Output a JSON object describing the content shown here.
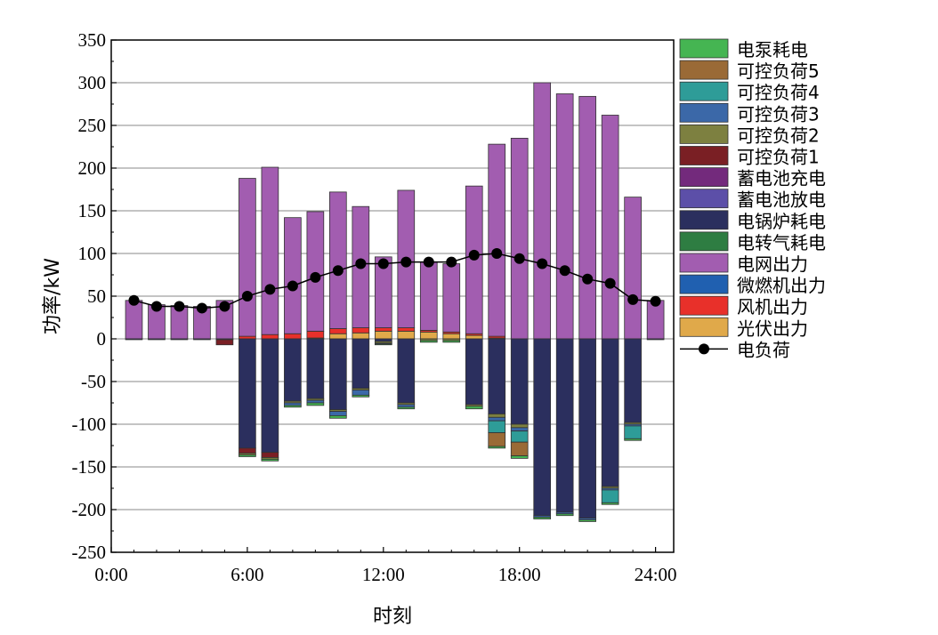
{
  "chart_data": {
    "type": "bar",
    "stacked": true,
    "title": "",
    "xlabel": "时刻",
    "ylabel": "功率/kW",
    "ylim": [
      -250,
      350
    ],
    "yticks": [
      -250,
      -200,
      -150,
      -100,
      -50,
      0,
      50,
      100,
      150,
      200,
      250,
      300,
      350
    ],
    "xlim": [
      0,
      24.8
    ],
    "xticks": [
      {
        "value": 0,
        "label": "0:00"
      },
      {
        "value": 6,
        "label": "6:00"
      },
      {
        "value": 12,
        "label": "12:00"
      },
      {
        "value": 18,
        "label": "18:00"
      },
      {
        "value": 24,
        "label": "24:00"
      }
    ],
    "grid": "horizontal",
    "legend_position": "right",
    "x": [
      1,
      2,
      3,
      4,
      5,
      6,
      7,
      8,
      9,
      10,
      11,
      12,
      13,
      14,
      15,
      16,
      17,
      18,
      19,
      20,
      21,
      22,
      23,
      24
    ],
    "series": [
      {
        "name": "光伏出力",
        "color": "#E0A94A",
        "sign": "positive",
        "values": [
          0,
          0,
          0,
          0,
          0,
          0,
          0,
          0,
          1,
          6,
          7,
          9,
          9,
          8,
          6,
          4,
          1,
          0,
          0,
          0,
          0,
          0,
          0,
          0
        ]
      },
      {
        "name": "风机出力",
        "color": "#E8302A",
        "sign": "positive",
        "values": [
          0,
          0,
          0,
          0,
          0,
          3,
          5,
          6,
          8,
          6,
          6,
          4,
          4,
          2,
          2,
          2,
          2,
          0,
          0,
          0,
          0,
          0,
          0,
          0
        ]
      },
      {
        "name": "微燃机出力",
        "color": "#2060B0",
        "sign": "positive",
        "values": [
          0,
          0,
          0,
          0,
          0,
          0,
          0,
          0,
          0,
          0,
          0,
          0,
          0,
          0,
          0,
          0,
          0,
          0,
          0,
          0,
          0,
          0,
          0,
          0
        ]
      },
      {
        "name": "电网出力",
        "color": "#A25DB0",
        "sign": "positive",
        "values": [
          45,
          40,
          39,
          38,
          45,
          185,
          196,
          136,
          140,
          160,
          142,
          83,
          161,
          80,
          80,
          173,
          225,
          235,
          300,
          287,
          284,
          262,
          166,
          45
        ]
      },
      {
        "name": "电转气耗电",
        "color": "#2E7D42",
        "sign": "negative",
        "values": [
          0,
          0,
          0,
          0,
          0,
          0,
          0,
          0,
          0,
          0,
          0,
          0,
          0,
          0,
          0,
          0,
          0,
          0,
          0,
          0,
          0,
          0,
          0,
          0
        ]
      },
      {
        "name": "电锅炉耗电",
        "color": "#2B2F5E",
        "sign": "negative",
        "values": [
          -1,
          -1,
          -1,
          -1,
          -1,
          -128,
          -133,
          -73,
          -70,
          -83,
          -58,
          -3,
          -75,
          0,
          0,
          -77,
          -88,
          -100,
          -207,
          -203,
          -210,
          -173,
          -98,
          -1
        ]
      },
      {
        "name": "蓄电池放电",
        "color": "#5C4FA8",
        "sign": "positive",
        "values": [
          0,
          0,
          0,
          0,
          0,
          0,
          0,
          0,
          0,
          0,
          0,
          0,
          0,
          0,
          0,
          0,
          0,
          0,
          0,
          0,
          0,
          0,
          0,
          0
        ]
      },
      {
        "name": "蓄电池充电",
        "color": "#732A7C",
        "sign": "negative",
        "values": [
          0,
          0,
          0,
          0,
          0,
          0,
          0,
          0,
          0,
          0,
          0,
          0,
          0,
          0,
          0,
          0,
          0,
          0,
          0,
          0,
          0,
          0,
          0,
          0
        ]
      },
      {
        "name": "可控负荷1",
        "color": "#7A1F24",
        "sign": "negative",
        "values": [
          0,
          0,
          0,
          0,
          -6,
          -6,
          -6,
          0,
          0,
          0,
          0,
          0,
          0,
          0,
          0,
          0,
          0,
          0,
          0,
          0,
          0,
          0,
          0,
          0
        ]
      },
      {
        "name": "可控负荷2",
        "color": "#7D8040",
        "sign": "negative",
        "values": [
          0,
          0,
          0,
          0,
          0,
          -2,
          -2,
          -2,
          -2,
          -2,
          -2,
          -2,
          -2,
          -2,
          -2,
          -2,
          -4,
          -4,
          0,
          0,
          0,
          -2,
          -2,
          0
        ]
      },
      {
        "name": "可控负荷3",
        "color": "#3B68A8",
        "sign": "negative",
        "values": [
          0,
          0,
          0,
          0,
          0,
          0,
          0,
          -3,
          -3,
          -5,
          -6,
          -1,
          -3,
          0,
          0,
          0,
          -4,
          -4,
          -2,
          -2,
          -2,
          -2,
          -2,
          0
        ]
      },
      {
        "name": "可控负荷4",
        "color": "#2E9C98",
        "sign": "negative",
        "values": [
          0,
          0,
          0,
          0,
          0,
          0,
          0,
          0,
          0,
          0,
          0,
          0,
          0,
          0,
          0,
          0,
          -14,
          -13,
          0,
          0,
          0,
          -15,
          -15,
          0
        ]
      },
      {
        "name": "可控负荷5",
        "color": "#9A6A36",
        "sign": "negative",
        "values": [
          0,
          0,
          0,
          0,
          0,
          0,
          0,
          0,
          0,
          0,
          0,
          0,
          0,
          0,
          0,
          0,
          -16,
          -16,
          0,
          0,
          0,
          0,
          0,
          0
        ]
      },
      {
        "name": "电泵耗电",
        "color": "#45B552",
        "sign": "negative",
        "values": [
          0,
          0,
          0,
          0,
          0,
          -2,
          -2,
          -2,
          -3,
          -3,
          -2,
          -1,
          -2,
          -2,
          -2,
          -3,
          -2,
          -3,
          -2,
          -2,
          -2,
          -2,
          -2,
          0
        ]
      }
    ],
    "line_series": {
      "name": "电负荷",
      "color": "#000000",
      "values": [
        45,
        38,
        38,
        36,
        38,
        50,
        58,
        62,
        72,
        80,
        88,
        88,
        90,
        90,
        90,
        98,
        100,
        94,
        88,
        80,
        70,
        65,
        46,
        44
      ]
    },
    "legend_order": [
      "电泵耗电",
      "可控负荷5",
      "可控负荷4",
      "可控负荷3",
      "可控负荷2",
      "可控负荷1",
      "蓄电池充电",
      "蓄电池放电",
      "电锅炉耗电",
      "电转气耗电",
      "电网出力",
      "微燃机出力",
      "风机出力",
      "光伏出力",
      "电负荷"
    ]
  }
}
